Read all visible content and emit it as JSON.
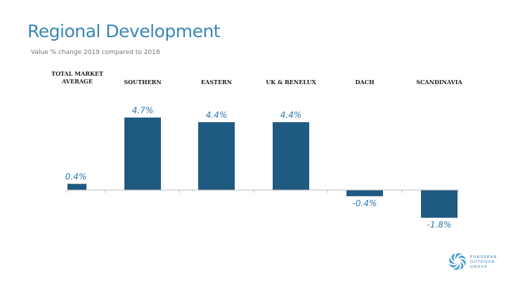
{
  "title": "Regional Development",
  "subtitle": "Value % change 2019 compared to 2018",
  "logo_text": [
    "EUROPEAN",
    "OUTDOOR",
    "GROUP"
  ],
  "chart_data": {
    "type": "bar",
    "categories": [
      "TOTAL MARKET AVERAGE",
      "SOUTHERN",
      "EASTERN",
      "UK & BENELUX",
      "DACH",
      "SCANDINAVIA"
    ],
    "values": [
      0.4,
      4.7,
      4.4,
      4.4,
      -0.4,
      -1.8
    ],
    "data_labels": [
      "0.4%",
      "4.7%",
      "4.4%",
      "4.4%",
      "-0.4%",
      "-1.8%"
    ],
    "color": "#1f5a82",
    "label_color": "#2f78b0",
    "grid": false
  }
}
